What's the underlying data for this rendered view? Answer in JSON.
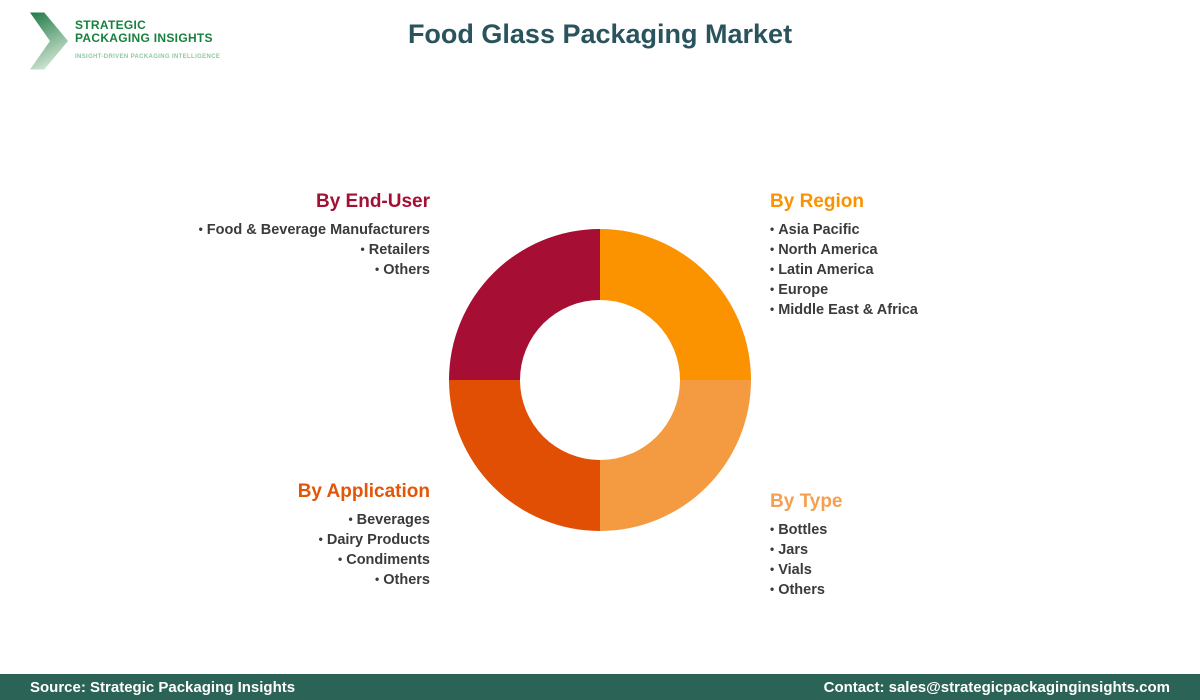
{
  "logo": {
    "name_line1": "STRATEGIC",
    "name_line2": "PACKAGING INSIGHTS",
    "tagline": "INSIGHT-DRIVEN PACKAGING INTELLIGENCE",
    "text_color": "#17813e",
    "tagline_color": "#8fc7a0",
    "icon": "chevron-arrow-icon",
    "icon_gradient_start": "#1f7a45",
    "icon_gradient_end": "#cde3d0"
  },
  "header": {
    "title": "Food Glass Packaging Market",
    "title_color": "#2a545d"
  },
  "groups": {
    "end_user": {
      "heading": "By End-User",
      "color": "#a41034",
      "items": [
        "Food & Beverage Manufacturers",
        "Retailers",
        "Others"
      ]
    },
    "region": {
      "heading": "By Region",
      "color": "#fb9300",
      "items": [
        "Asia Pacific",
        "North America",
        "Latin America",
        "Europe",
        "Middle East & Africa"
      ]
    },
    "application": {
      "heading": "By Application",
      "color": "#e35507",
      "items": [
        "Beverages",
        "Dairy Products",
        "Condiments",
        "Others"
      ]
    },
    "type": {
      "heading": "By Type",
      "color": "#f5a050",
      "items": [
        "Bottles",
        "Jars",
        "Vials",
        "Others"
      ]
    }
  },
  "chart_data": {
    "type": "pie",
    "subtype": "donut",
    "title": "Food Glass Packaging Market segmentation",
    "start_angle_deg": 0,
    "inner_radius_ratio": 0.53,
    "legend_position": "around-quadrants",
    "segments": [
      {
        "label": "By Region",
        "value": 25,
        "color": "#fb9300"
      },
      {
        "label": "By Type",
        "value": 25,
        "color": "#f49b42"
      },
      {
        "label": "By Application",
        "value": 25,
        "color": "#e04f04"
      },
      {
        "label": "By End-User",
        "value": 25,
        "color": "#a60f33"
      }
    ]
  },
  "footer": {
    "source": "Source: Strategic Packaging Insights",
    "contact": "Contact: sales@strategicpackaginginsights.com",
    "background": "#2b6356"
  }
}
